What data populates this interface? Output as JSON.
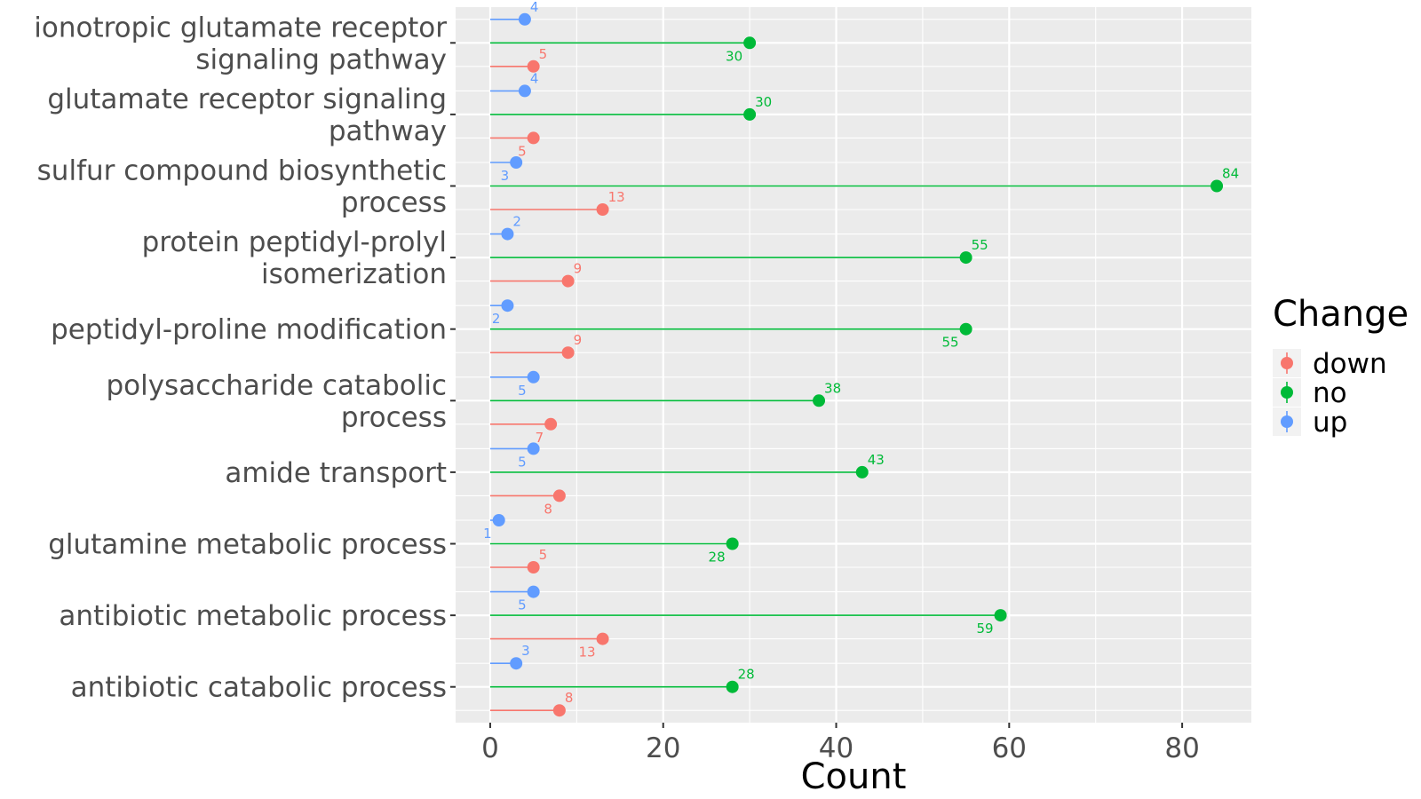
{
  "chart_data": {
    "type": "lollipop",
    "xlabel": "Count",
    "xlim": [
      -4,
      88
    ],
    "x_ticks": [
      0,
      20,
      40,
      60,
      80
    ],
    "x_tick_labels": [
      "0",
      "20",
      "40",
      "60",
      "80"
    ],
    "categories": [
      [
        "ionotropic glutamate receptor",
        "signaling pathway"
      ],
      [
        "glutamate receptor signaling",
        "pathway"
      ],
      [
        "sulfur compound biosynthetic",
        "process"
      ],
      [
        "protein peptidyl-prolyl",
        "isomerization"
      ],
      [
        "peptidyl-proline modification"
      ],
      [
        "polysaccharide catabolic",
        "process"
      ],
      [
        "amide transport"
      ],
      [
        "glutamine metabolic process"
      ],
      [
        "antibiotic metabolic process"
      ],
      [
        "antibiotic catabolic process"
      ]
    ],
    "series": [
      {
        "name": "up",
        "color": "#619CFF",
        "values": [
          4,
          4,
          3,
          2,
          2,
          5,
          5,
          1,
          5,
          3
        ]
      },
      {
        "name": "no",
        "color": "#00BA38",
        "values": [
          30,
          30,
          84,
          55,
          55,
          38,
          43,
          28,
          59,
          28
        ]
      },
      {
        "name": "down",
        "color": "#F8766D",
        "values": [
          5,
          5,
          13,
          9,
          9,
          7,
          8,
          5,
          13,
          8
        ]
      }
    ],
    "label_placement": {
      "up": [
        "above",
        "above",
        "below",
        "above",
        "below",
        "below",
        "below",
        "below",
        "below",
        "above"
      ],
      "no": [
        "below",
        "above",
        "above",
        "above",
        "below",
        "above",
        "above",
        "below",
        "below",
        "above"
      ],
      "down": [
        "above",
        "below",
        "above",
        "above",
        "above",
        "below",
        "below",
        "above",
        "below",
        "above"
      ]
    },
    "legend": {
      "title": "Change",
      "entries": [
        {
          "label": "down",
          "color": "#F8766D"
        },
        {
          "label": "no",
          "color": "#00BA38"
        },
        {
          "label": "up",
          "color": "#619CFF"
        }
      ],
      "position": "right"
    },
    "grid": true,
    "panel_background": "#EBEBEB"
  }
}
